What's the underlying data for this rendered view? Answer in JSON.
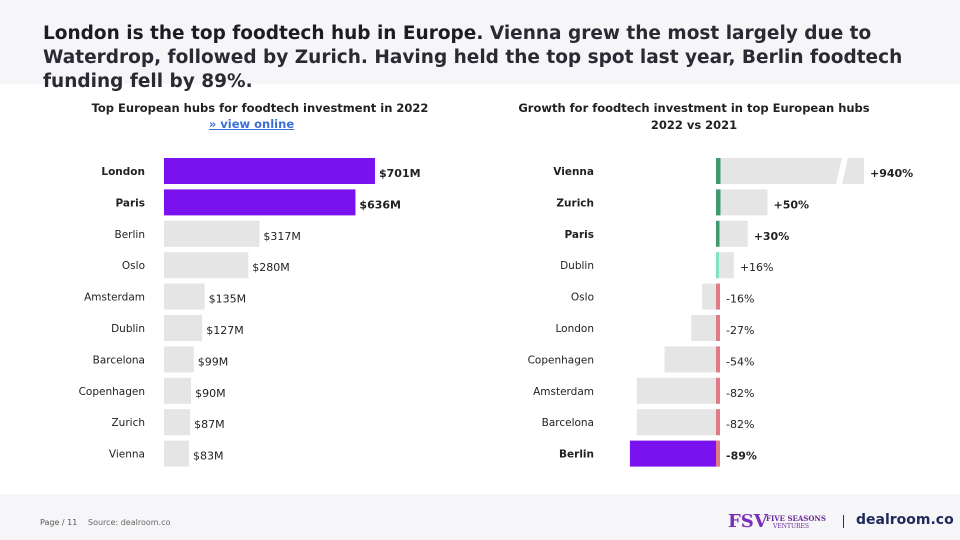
{
  "header": {
    "title_part1": "London is the top foodtech hub in Europe.",
    "title_part2": " Vienna grew the most largely due to Waterdrop, followed by Zurich. Having held the top spot last year, Berlin foodtech funding fell by 89%."
  },
  "colors": {
    "highlight": "#7a12f0",
    "bar_grey": "#e5e5e5",
    "pos_strong": "#3e9a6c",
    "pos_light": "#7ee3c3",
    "neg": "#e07a86"
  },
  "chart_data": [
    {
      "type": "bar",
      "orientation": "horizontal",
      "title": "Top European hubs for foodtech investment in 2022",
      "link_text": "» view online",
      "unit": "$M",
      "categories": [
        "London",
        "Paris",
        "Berlin",
        "Oslo",
        "Amsterdam",
        "Dublin",
        "Barcelona",
        "Copenhagen",
        "Zurich",
        "Vienna"
      ],
      "values": [
        701,
        636,
        317,
        280,
        135,
        127,
        99,
        90,
        87,
        83
      ],
      "value_labels": [
        "$701M",
        "$636M",
        "$317M",
        "$280M",
        "$135M",
        "$127M",
        "$99M",
        "$90M",
        "$87M",
        "$83M"
      ],
      "highlighted": [
        "London",
        "Paris"
      ],
      "xlim": [
        0,
        701
      ]
    },
    {
      "type": "bar",
      "orientation": "horizontal",
      "title": "Growth for foodtech investment in top European hubs 2022 vs 2021",
      "title_line1": "Growth for foodtech investment in top European hubs",
      "title_line2": "2022 vs 2021",
      "unit": "%",
      "categories": [
        "Vienna",
        "Zurich",
        "Paris",
        "Dublin",
        "Oslo",
        "London",
        "Copenhagen",
        "Amsterdam",
        "Barcelona",
        "Berlin"
      ],
      "values": [
        940,
        50,
        30,
        16,
        -16,
        -27,
        -54,
        -82,
        -82,
        -89
      ],
      "value_labels": [
        "+940%",
        "+50%",
        "+30%",
        "+16%",
        "-16%",
        "-27%",
        "-54%",
        "-82%",
        "-82%",
        "-89%"
      ],
      "bold_labels": [
        "Vienna",
        "Zurich",
        "Paris",
        "Berlin"
      ],
      "highlighted": [
        "Berlin"
      ],
      "axis_break": {
        "at": 940,
        "note": "Vienna bar truncated with break mark"
      }
    }
  ],
  "footer": {
    "page": "Page / 11",
    "source": "Source: dealroom.co",
    "fsv_mark": "FSV",
    "fsv_name": "FIVE SEASONS",
    "fsv_sub": "VENTURES",
    "dealroom": "dealroom.co"
  }
}
